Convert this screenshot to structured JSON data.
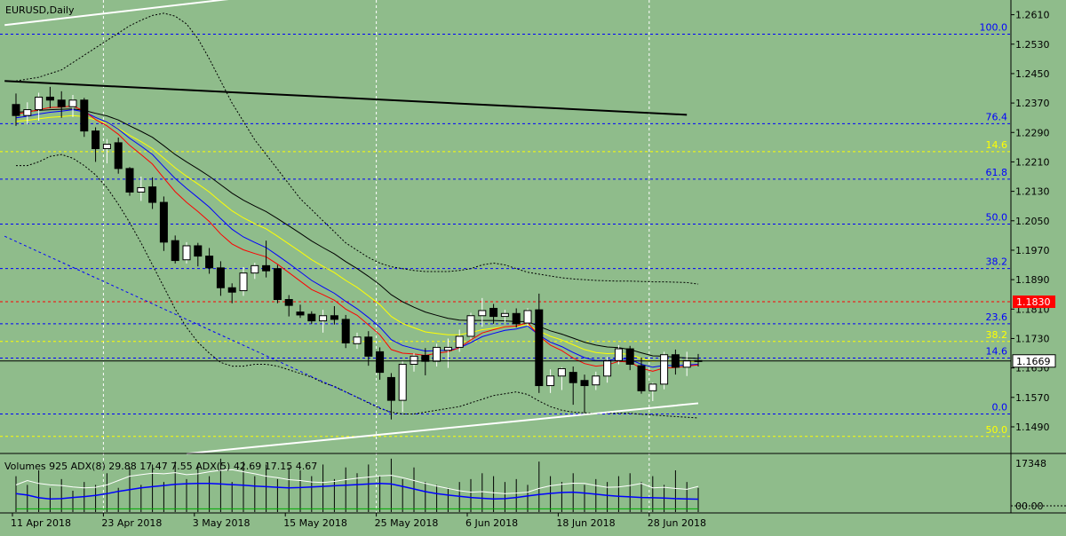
{
  "chart_data": {
    "type": "candlestick",
    "symbol_label": "EURUSD,Daily",
    "y_ticks": [
      "1.2610",
      "1.2530",
      "1.2450",
      "1.2370",
      "1.2290",
      "1.2210",
      "1.2130",
      "1.2050",
      "1.1970",
      "1.1890",
      "1.1810",
      "1.1730",
      "1.1650",
      "1.1570",
      "1.1490"
    ],
    "ylim": [
      1.142,
      1.265
    ],
    "x_labels": [
      {
        "label": "11 Apr 2018",
        "index": 0
      },
      {
        "label": "23 Apr 2018",
        "index": 8
      },
      {
        "label": "3 May 2018",
        "index": 16
      },
      {
        "label": "15 May 2018",
        "index": 24
      },
      {
        "label": "25 May 2018",
        "index": 32
      },
      {
        "label": "6 Jun 2018",
        "index": 40
      },
      {
        "label": "18 Jun 2018",
        "index": 48
      },
      {
        "label": "28 Jun 2018",
        "index": 56
      }
    ],
    "candles": [
      [
        1.2366,
        1.2396,
        1.2308,
        1.2336
      ],
      [
        1.2336,
        1.2372,
        1.2312,
        1.2352
      ],
      [
        1.2352,
        1.2398,
        1.2322,
        1.2386
      ],
      [
        1.2386,
        1.2414,
        1.2356,
        1.2378
      ],
      [
        1.2378,
        1.2402,
        1.233,
        1.236
      ],
      [
        1.236,
        1.2392,
        1.2332,
        1.2378
      ],
      [
        1.2378,
        1.2384,
        1.2278,
        1.2294
      ],
      [
        1.2294,
        1.2304,
        1.221,
        1.2246
      ],
      [
        1.2246,
        1.2272,
        1.2206,
        1.2258
      ],
      [
        1.2262,
        1.2276,
        1.2178,
        1.2192
      ],
      [
        1.2192,
        1.2196,
        1.2118,
        1.2128
      ],
      [
        1.2128,
        1.217,
        1.2104,
        1.214
      ],
      [
        1.2142,
        1.2168,
        1.2082,
        1.21
      ],
      [
        1.21,
        1.2116,
        1.1968,
        1.1992
      ],
      [
        1.1996,
        1.201,
        1.1934,
        1.1942
      ],
      [
        1.1944,
        1.1992,
        1.1934,
        1.1982
      ],
      [
        1.1982,
        1.199,
        1.1926,
        1.1954
      ],
      [
        1.1954,
        1.1976,
        1.1906,
        1.1922
      ],
      [
        1.1922,
        1.194,
        1.1846,
        1.1868
      ],
      [
        1.1868,
        1.188,
        1.1826,
        1.1856
      ],
      [
        1.186,
        1.1924,
        1.1846,
        1.1908
      ],
      [
        1.1908,
        1.1936,
        1.1892,
        1.1928
      ],
      [
        1.1928,
        1.1996,
        1.1896,
        1.1914
      ],
      [
        1.192,
        1.193,
        1.1826,
        1.1836
      ],
      [
        1.1836,
        1.1848,
        1.179,
        1.182
      ],
      [
        1.1802,
        1.1822,
        1.1786,
        1.1794
      ],
      [
        1.1796,
        1.1804,
        1.177,
        1.1778
      ],
      [
        1.1778,
        1.1808,
        1.1746,
        1.1792
      ],
      [
        1.1792,
        1.1818,
        1.1768,
        1.1782
      ],
      [
        1.1782,
        1.1794,
        1.1704,
        1.1718
      ],
      [
        1.1716,
        1.1746,
        1.1702,
        1.1734
      ],
      [
        1.1734,
        1.175,
        1.1656,
        1.1682
      ],
      [
        1.1694,
        1.1706,
        1.1618,
        1.1638
      ],
      [
        1.1624,
        1.1636,
        1.151,
        1.1562
      ],
      [
        1.1562,
        1.167,
        1.153,
        1.166
      ],
      [
        1.166,
        1.169,
        1.164,
        1.1682
      ],
      [
        1.1684,
        1.1704,
        1.163,
        1.1668
      ],
      [
        1.1668,
        1.1716,
        1.1654,
        1.1706
      ],
      [
        1.1698,
        1.173,
        1.165,
        1.1706
      ],
      [
        1.1706,
        1.1754,
        1.1694,
        1.1736
      ],
      [
        1.1736,
        1.18,
        1.1728,
        1.1792
      ],
      [
        1.1792,
        1.184,
        1.1762,
        1.1806
      ],
      [
        1.1812,
        1.1824,
        1.177,
        1.179
      ],
      [
        1.179,
        1.1808,
        1.1774,
        1.1798
      ],
      [
        1.1798,
        1.1812,
        1.176,
        1.177
      ],
      [
        1.1772,
        1.1812,
        1.1764,
        1.1806
      ],
      [
        1.1808,
        1.1852,
        1.1582,
        1.1602
      ],
      [
        1.1602,
        1.1646,
        1.1582,
        1.1628
      ],
      [
        1.1628,
        1.1652,
        1.159,
        1.1648
      ],
      [
        1.1638,
        1.1654,
        1.155,
        1.161
      ],
      [
        1.1616,
        1.1632,
        1.1528,
        1.1602
      ],
      [
        1.1604,
        1.164,
        1.159,
        1.1628
      ],
      [
        1.1628,
        1.168,
        1.161,
        1.167
      ],
      [
        1.167,
        1.1712,
        1.166,
        1.1702
      ],
      [
        1.1702,
        1.171,
        1.1644,
        1.166
      ],
      [
        1.1656,
        1.1678,
        1.158,
        1.1588
      ],
      [
        1.1588,
        1.161,
        1.156,
        1.1606
      ],
      [
        1.1606,
        1.1694,
        1.1592,
        1.1686
      ],
      [
        1.1686,
        1.17,
        1.1632,
        1.1652
      ],
      [
        1.1652,
        1.1694,
        1.1628,
        1.167
      ],
      [
        1.167,
        1.1688,
        1.1654,
        1.1669
      ]
    ],
    "ema_red": [
      1.234,
      1.2345,
      1.2352,
      1.2358,
      1.2359,
      1.2362,
      1.2348,
      1.2325,
      1.2308,
      1.2285,
      1.2255,
      1.223,
      1.2204,
      1.2166,
      1.2129,
      1.21,
      1.2075,
      1.2048,
      1.2014,
      1.1987,
      1.1971,
      1.1961,
      1.1952,
      1.1932,
      1.1909,
      1.1886,
      1.1863,
      1.1849,
      1.1834,
      1.181,
      1.1793,
      1.1767,
      1.174,
      1.17,
      1.169,
      1.1688,
      1.1684,
      1.169,
      1.1694,
      1.1705,
      1.1726,
      1.1745,
      1.1754,
      1.1762,
      1.1764,
      1.1773,
      1.1737,
      1.1712,
      1.1697,
      1.1677,
      1.1662,
      1.1655,
      1.1658,
      1.1668,
      1.1666,
      1.1649,
      1.1641,
      1.165,
      1.1651,
      1.1655,
      1.1658
    ],
    "ema_blue": [
      1.233,
      1.2334,
      1.234,
      1.2345,
      1.2348,
      1.2352,
      1.2346,
      1.2331,
      1.2318,
      1.2299,
      1.2274,
      1.2253,
      1.223,
      1.2197,
      1.2165,
      1.2138,
      1.2113,
      1.2087,
      1.2056,
      1.2027,
      1.2006,
      1.1991,
      1.1977,
      1.1956,
      1.1934,
      1.1911,
      1.1888,
      1.187,
      1.1853,
      1.1831,
      1.1811,
      1.1787,
      1.1761,
      1.1727,
      1.1711,
      1.1703,
      1.1696,
      1.1697,
      1.1698,
      1.1704,
      1.1719,
      1.1735,
      1.1744,
      1.1752,
      1.1756,
      1.1764,
      1.1739,
      1.172,
      1.1708,
      1.1692,
      1.1678,
      1.167,
      1.167,
      1.1675,
      1.1673,
      1.166,
      1.1652,
      1.1657,
      1.1656,
      1.1658,
      1.166
    ],
    "ema_yellow": [
      1.232,
      1.2323,
      1.2327,
      1.2331,
      1.2333,
      1.2336,
      1.2333,
      1.2324,
      1.2315,
      1.2301,
      1.2282,
      1.2265,
      1.2246,
      1.222,
      1.2194,
      1.2171,
      1.215,
      1.2128,
      1.2102,
      1.2077,
      1.2058,
      1.2042,
      1.2028,
      1.2008,
      1.1987,
      1.1966,
      1.1944,
      1.1926,
      1.1909,
      1.1888,
      1.1869,
      1.1846,
      1.1822,
      1.179,
      1.1771,
      1.1759,
      1.1748,
      1.1744,
      1.174,
      1.174,
      1.1746,
      1.1754,
      1.1758,
      1.1762,
      1.1763,
      1.1767,
      1.175,
      1.1736,
      1.1726,
      1.1713,
      1.17,
      1.1692,
      1.1689,
      1.169,
      1.1686,
      1.1676,
      1.1668,
      1.167,
      1.1668,
      1.1668,
      1.1668
    ],
    "sma_black": [
      1.2345,
      1.2347,
      1.235,
      1.2352,
      1.2353,
      1.2354,
      1.235,
      1.2342,
      1.2335,
      1.2324,
      1.2308,
      1.2293,
      1.2277,
      1.2254,
      1.223,
      1.221,
      1.2191,
      1.2171,
      1.2148,
      1.2125,
      1.2106,
      1.209,
      1.2075,
      1.2056,
      1.2036,
      1.2016,
      1.1995,
      1.1977,
      1.196,
      1.1939,
      1.192,
      1.1899,
      1.1876,
      1.1849,
      1.183,
      1.1815,
      1.1802,
      1.1793,
      1.1785,
      1.178,
      1.1779,
      1.1779,
      1.1779,
      1.1778,
      1.1776,
      1.1776,
      1.1763,
      1.1751,
      1.1742,
      1.1731,
      1.172,
      1.1712,
      1.1707,
      1.1705,
      1.17,
      1.1691,
      1.1683,
      1.1682,
      1.1679,
      1.1677,
      1.1676
    ],
    "bb_upper": [
      1.243,
      1.2435,
      1.244,
      1.245,
      1.246,
      1.248,
      1.25,
      1.252,
      1.254,
      1.256,
      1.258,
      1.2595,
      1.2608,
      1.2614,
      1.2606,
      1.2585,
      1.2545,
      1.249,
      1.243,
      1.237,
      1.232,
      1.227,
      1.223,
      1.219,
      1.215,
      1.211,
      1.208,
      1.205,
      1.202,
      1.199,
      1.197,
      1.195,
      1.1935,
      1.1925,
      1.192,
      1.1915,
      1.1912,
      1.1912,
      1.1912,
      1.1915,
      1.192,
      1.193,
      1.1935,
      1.193,
      1.192,
      1.191,
      1.1905,
      1.19,
      1.1895,
      1.1892,
      1.189,
      1.1888,
      1.1887,
      1.1886,
      1.1886,
      1.1885,
      1.1884,
      1.1884,
      1.1883,
      1.1882,
      1.1878
    ],
    "bb_lower": [
      1.22,
      1.22,
      1.221,
      1.2225,
      1.223,
      1.222,
      1.22,
      1.2175,
      1.214,
      1.2095,
      1.2045,
      1.199,
      1.193,
      1.187,
      1.181,
      1.176,
      1.172,
      1.169,
      1.1665,
      1.1655,
      1.1655,
      1.166,
      1.166,
      1.1655,
      1.1645,
      1.1635,
      1.1625,
      1.161,
      1.16,
      1.1585,
      1.157,
      1.1555,
      1.154,
      1.153,
      1.1525,
      1.1525,
      1.153,
      1.1535,
      1.154,
      1.1545,
      1.1555,
      1.1565,
      1.1575,
      1.158,
      1.1585,
      1.1578,
      1.156,
      1.1545,
      1.1535,
      1.153,
      1.1528,
      1.1527,
      1.1527,
      1.1527,
      1.1527,
      1.1524,
      1.1522,
      1.152,
      1.1518,
      1.1516,
      1.1514
    ],
    "trendlines": [
      {
        "name": "black-resistance",
        "from": [
          -1,
          1.243
        ],
        "to": [
          59,
          1.2338
        ]
      },
      {
        "name": "white-upper",
        "from": [
          -1,
          1.2582
        ],
        "to": [
          20,
          1.2657
        ]
      },
      {
        "name": "white-lower",
        "from": [
          15,
          1.1417
        ],
        "to": [
          60,
          1.1554
        ]
      },
      {
        "name": "blue-channel",
        "from": [
          -1,
          1.2008
        ],
        "to": [
          33,
          1.1528
        ]
      }
    ],
    "fib_blue": [
      {
        "label": "100.0",
        "price": 1.2557
      },
      {
        "label": "76.4",
        "price": 1.2314
      },
      {
        "label": "61.8",
        "price": 1.2163
      },
      {
        "label": "50.0",
        "price": 1.2041
      },
      {
        "label": "38.2",
        "price": 1.192
      },
      {
        "label": "23.6",
        "price": 1.177
      },
      {
        "label": "14.6",
        "price": 1.1677
      },
      {
        "label": "0.0",
        "price": 1.1525
      }
    ],
    "fib_yellow": [
      {
        "label": "14.6",
        "price": 1.2238
      },
      {
        "label": "38.2",
        "price": 1.1722
      },
      {
        "label": "50.0",
        "price": 1.1464
      }
    ],
    "red_level": {
      "label": "1.1830",
      "price": 1.183
    },
    "current_price": {
      "label": "1.1669",
      "price": 1.1669
    },
    "vertical_grid_indices": [
      8,
      32,
      56
    ],
    "volume_panel": {
      "label": "Volumes 925 ADX(8) 29.88 17.47 7.55 ADX(5) 42.69 17.15 4.67",
      "tick_top": "17348",
      "tick_bottom": "0.00",
      "tick_bottom_label": "00.00",
      "max": 17348,
      "volumes": [
        12000,
        9000,
        14000,
        8000,
        11000,
        7000,
        10000,
        9000,
        13000,
        8000,
        15000,
        9000,
        16000,
        10000,
        17000,
        11000,
        16000,
        12000,
        18000,
        10000,
        17000,
        12000,
        16000,
        11000,
        15000,
        14000,
        12000,
        16000,
        11000,
        15000,
        13000,
        16000,
        12000,
        18000,
        11000,
        15000,
        10000,
        9000,
        8000,
        10000,
        11000,
        13000,
        12000,
        10000,
        11000,
        9000,
        17000,
        12000,
        10000,
        13000,
        9000,
        11000,
        10000,
        12000,
        13000,
        10000,
        12000,
        9000,
        14000,
        10000,
        8000
      ],
      "adx_white": [
        9000,
        10500,
        9500,
        9000,
        8800,
        8300,
        8000,
        8200,
        9000,
        10500,
        12000,
        12500,
        13000,
        12800,
        13200,
        12500,
        12800,
        13500,
        14000,
        14200,
        13500,
        12800,
        12000,
        11500,
        10800,
        10500,
        10000,
        9800,
        10200,
        10800,
        11300,
        11700,
        12100,
        12300,
        11500,
        10500,
        9500,
        8600,
        7800,
        7000,
        6500,
        6700,
        6300,
        6000,
        6200,
        6500,
        7800,
        8700,
        9200,
        9600,
        9500,
        8800,
        8200,
        8300,
        8800,
        9500,
        8000,
        8200,
        7800,
        7500,
        8500
      ],
      "adx_blue": [
        6000,
        5500,
        4600,
        4200,
        4300,
        4700,
        5000,
        5400,
        6000,
        6800,
        7400,
        8000,
        8400,
        8800,
        9200,
        9400,
        9500,
        9500,
        9300,
        9100,
        8900,
        8600,
        8400,
        8200,
        8000,
        8100,
        8300,
        8500,
        8700,
        8900,
        9100,
        9300,
        9500,
        9300,
        8500,
        7600,
        6700,
        6000,
        5500,
        5100,
        4700,
        4400,
        4200,
        4300,
        4700,
        5200,
        5700,
        6100,
        6400,
        6500,
        6200,
        5800,
        5400,
        5100,
        4900,
        4700,
        4600,
        4500,
        4300,
        4200,
        4100
      ],
      "adx_green": [
        800,
        800,
        800,
        800,
        800,
        800,
        800,
        800,
        800,
        800,
        800,
        800,
        800,
        800,
        800,
        800,
        800,
        800,
        800,
        800,
        800,
        800,
        800,
        800,
        800,
        800,
        800,
        800,
        800,
        800,
        800,
        800,
        800,
        800,
        800,
        800,
        800,
        800,
        800,
        800,
        800,
        800,
        800,
        800,
        800,
        800,
        800,
        800,
        800,
        800,
        800,
        800,
        800,
        800,
        800,
        800,
        800,
        800,
        800,
        800,
        800
      ]
    },
    "colors": {
      "background": "#8fbc8b",
      "bull": "#ffffff",
      "bear": "#000000",
      "ema_red": "#ff0000",
      "ema_blue": "#0000ff",
      "ema_yellow": "#ffff00",
      "sma_black": "#000000",
      "fib_blue": "#0000ff",
      "fib_yellow": "#ffff00",
      "red_level": "#ff0000",
      "red_level_tag": "#ff0000",
      "price_tag": "#ffffff"
    }
  }
}
